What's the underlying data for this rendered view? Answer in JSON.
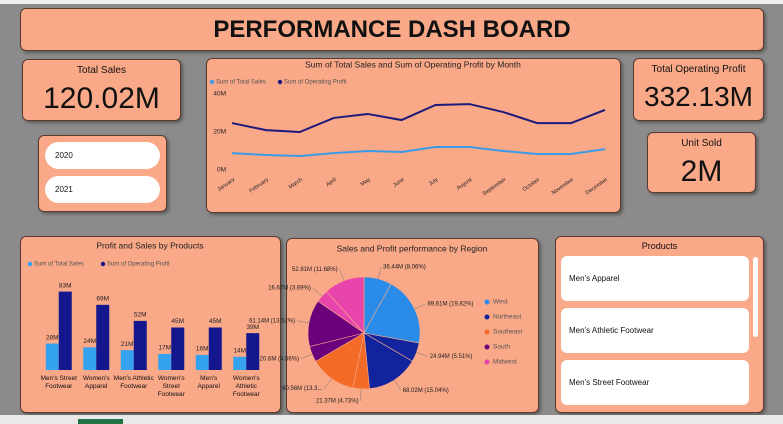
{
  "header": {
    "title": "PERFORMANCE DASH BOARD"
  },
  "cards": [
    {
      "label": "Total Sales",
      "value": "120.02M"
    },
    {
      "label": "Total Operating Profit",
      "value": "332.13M"
    },
    {
      "label": "Unit Sold",
      "value": "2M"
    }
  ],
  "year_slicer": [
    "2020",
    "2021"
  ],
  "products": {
    "title": "Products",
    "items": [
      "Men's Apparel",
      "Men's Athletic Footwear",
      "Men's Street Footwear"
    ]
  },
  "chart_data": [
    {
      "type": "line",
      "title": "Sum of Total Sales and Sum of Operating Profit by Month",
      "categories": [
        "January",
        "February",
        "March",
        "April",
        "May",
        "June",
        "July",
        "August",
        "September",
        "October",
        "November",
        "December"
      ],
      "series": [
        {
          "name": "Sum of Total Sales",
          "color": "#3a9be8",
          "values": [
            8.9,
            7.9,
            7.4,
            8.9,
            10,
            9.5,
            12.1,
            12.1,
            10,
            8.4,
            8.4,
            11
          ]
        },
        {
          "name": "Sum of Operating Profit",
          "color": "#1c1a7a",
          "values": [
            24.7,
            21,
            20,
            27.4,
            29.5,
            26.3,
            34.2,
            34.7,
            30.5,
            24.7,
            24.7,
            31.6
          ]
        }
      ],
      "ylim": [
        0,
        45
      ],
      "yticks": [
        {
          "value": 0,
          "label": "0M"
        },
        {
          "value": 20,
          "label": "20M"
        },
        {
          "value": 40,
          "label": "40M"
        }
      ]
    },
    {
      "type": "bar",
      "title": "Profit and Sales by Products",
      "categories": [
        "Men's Street Footwear",
        "Women's Apparel",
        "Men's Athletic Footwear",
        "Women's Street Footwear",
        "Men's Apparel",
        "Women's Athletic Footwear"
      ],
      "series": [
        {
          "name": "Sum of Total Sales",
          "color": "#35a2f0",
          "values": [
            28,
            24,
            21,
            17,
            16,
            14
          ],
          "value_labels": [
            "28M",
            "24M",
            "21M",
            "17M",
            "16M",
            "14M"
          ]
        },
        {
          "name": "Sum of Operating Profit",
          "color": "#13168c",
          "values": [
            83,
            69,
            52,
            45,
            45,
            39
          ],
          "value_labels": [
            "83M",
            "69M",
            "52M",
            "45M",
            "45M",
            "39M"
          ]
        }
      ],
      "ylim": [
        0,
        90
      ]
    },
    {
      "type": "pie",
      "title": "Sales and Profit performance by Region",
      "groups": [
        {
          "name": "West",
          "color": "#2b8be8",
          "values": [
            36.44,
            89.61
          ],
          "value_labels": [
            "36.44M (8.06%)",
            "89.61M (19.82%)"
          ]
        },
        {
          "name": "Northeast",
          "color": "#12239e",
          "values": [
            24.94,
            68.02
          ],
          "value_labels": [
            "24.94M (5.51%)",
            "68.02M (15.04%)"
          ]
        },
        {
          "name": "Southeast",
          "color": "#f36b27",
          "values": [
            21.37,
            60.56
          ],
          "value_labels": [
            "21.37M (4.73%)",
            "60.56M (13.3..."
          ]
        },
        {
          "name": "South",
          "color": "#6b017b",
          "values": [
            20.6,
            61.14
          ],
          "value_labels": [
            "20.6M (4.56%)",
            "61.14M (13.52%)"
          ]
        },
        {
          "name": "Midwest",
          "color": "#e744ac",
          "values": [
            16.67,
            52.81
          ],
          "value_labels": [
            "16.67M (3.69%)",
            "52.81M (11.68%)"
          ]
        }
      ]
    }
  ]
}
